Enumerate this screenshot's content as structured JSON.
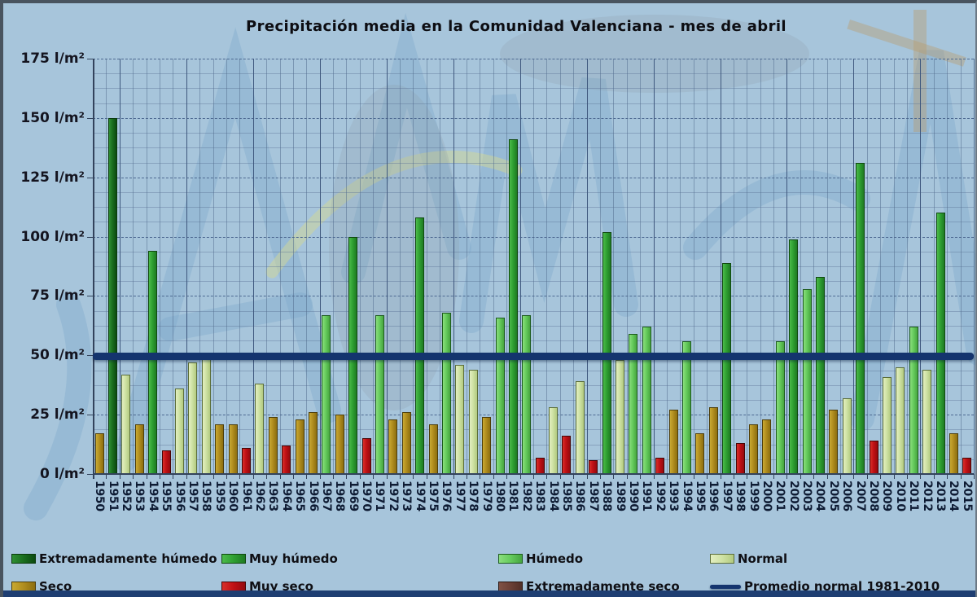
{
  "title": "Precipitación media en la Comunidad Valenciana - mes de abril",
  "y_axis": {
    "unit": "l/m²",
    "tick_labels": [
      "175 l/m²",
      "150 l/m²",
      "125 l/m²",
      "100 l/m²",
      "75 l/m²",
      "50 l/m²",
      "25 l/m²",
      "0 l/m²"
    ]
  },
  "chart_data": {
    "type": "bar",
    "title": "Precipitación media en la Comunidad Valenciana - mes de abril",
    "ylabel": "l/m²",
    "ylim": [
      0,
      175
    ],
    "ytick_step": 25,
    "minor_grid_step": 6.25,
    "grid": true,
    "legend_position": "bottom",
    "categories": [
      1950,
      1951,
      1952,
      1953,
      1954,
      1955,
      1956,
      1957,
      1958,
      1959,
      1960,
      1961,
      1962,
      1963,
      1964,
      1965,
      1966,
      1967,
      1968,
      1969,
      1970,
      1971,
      1972,
      1973,
      1974,
      1975,
      1976,
      1977,
      1978,
      1979,
      1980,
      1981,
      1982,
      1983,
      1984,
      1985,
      1986,
      1987,
      1988,
      1989,
      1990,
      1991,
      1992,
      1993,
      1994,
      1995,
      1996,
      1997,
      1998,
      1999,
      2000,
      2001,
      2002,
      2003,
      2004,
      2005,
      2006,
      2007,
      2008,
      2009,
      2010,
      2011,
      2012,
      2013,
      2014,
      2015
    ],
    "values": [
      17,
      150,
      42,
      21,
      94,
      10,
      36,
      47,
      51,
      21,
      21,
      11,
      38,
      24,
      12,
      23,
      26,
      67,
      25,
      100,
      15,
      67,
      23,
      26,
      108,
      21,
      68,
      46,
      44,
      24,
      66,
      141,
      67,
      7,
      28,
      16,
      39,
      6,
      102,
      48,
      59,
      62,
      7,
      27,
      56,
      17,
      28,
      89,
      13,
      21,
      23,
      56,
      99,
      78,
      83,
      27,
      32,
      131,
      14,
      41,
      45,
      62,
      44,
      110,
      17,
      7
    ],
    "bar_categories": [
      "Seco",
      "Extremadamente húmedo",
      "Normal",
      "Seco",
      "Muy húmedo",
      "Muy seco",
      "Normal",
      "Normal",
      "Normal",
      "Seco",
      "Seco",
      "Muy seco",
      "Normal",
      "Seco",
      "Muy seco",
      "Seco",
      "Seco",
      "Húmedo",
      "Seco",
      "Muy húmedo",
      "Muy seco",
      "Húmedo",
      "Seco",
      "Seco",
      "Muy húmedo",
      "Seco",
      "Húmedo",
      "Normal",
      "Normal",
      "Seco",
      "Húmedo",
      "Muy húmedo",
      "Húmedo",
      "Muy seco",
      "Normal",
      "Muy seco",
      "Normal",
      "Muy seco",
      "Muy húmedo",
      "Normal",
      "Húmedo",
      "Húmedo",
      "Muy seco",
      "Seco",
      "Húmedo",
      "Seco",
      "Seco",
      "Muy húmedo",
      "Muy seco",
      "Seco",
      "Seco",
      "Húmedo",
      "Muy húmedo",
      "Húmedo",
      "Muy húmedo",
      "Seco",
      "Normal",
      "Muy húmedo",
      "Muy seco",
      "Normal",
      "Normal",
      "Húmedo",
      "Normal",
      "Muy húmedo",
      "Seco",
      "Muy seco"
    ],
    "reference_line": {
      "label": "Promedio normal 1981-2010",
      "value": 49.5
    }
  },
  "legend": {
    "items": [
      {
        "label": "Extremadamente húmedo",
        "swatch": "box",
        "fill": "#1a6e1e",
        "light": "#2f8f33",
        "dark": "#0c4a10",
        "border": "#0a3a0c"
      },
      {
        "label": "Muy húmedo",
        "swatch": "box",
        "fill": "#2fa032",
        "light": "#4cbb4a",
        "dark": "#1e7a22",
        "border": "#10490f"
      },
      {
        "label": "Húmedo",
        "swatch": "box",
        "fill": "#66cb5d",
        "light": "#8ade7d",
        "dark": "#46a53f",
        "border": "#1e5c1e"
      },
      {
        "label": "Normal",
        "swatch": "box",
        "fill": "#cfe2a4",
        "light": "#e3efc0",
        "dark": "#b2ca80",
        "border": "#5c6e3a"
      },
      {
        "label": "Seco",
        "swatch": "box",
        "fill": "#b08d1e",
        "light": "#c9a932",
        "dark": "#8c6e10",
        "border": "#4e3e0a"
      },
      {
        "label": "Muy seco",
        "swatch": "box",
        "fill": "#c01014",
        "light": "#d8302a",
        "dark": "#930a0e",
        "border": "#470505"
      },
      {
        "label": "Extremadamente seco",
        "swatch": "box",
        "fill": "#6b4036",
        "light": "#7f5144",
        "dark": "#512f28",
        "border": "#2a1611"
      },
      {
        "label": "Promedio normal 1981-2010",
        "swatch": "line",
        "fill": "#14346e"
      }
    ]
  },
  "colors": {
    "background": "#a7c5db",
    "grid_minor": "rgba(90,115,150,0.42)",
    "grid_major": "#4e6a92",
    "axis": "#33435c",
    "reference_line": "#14346e",
    "text": "#0f0f14"
  }
}
